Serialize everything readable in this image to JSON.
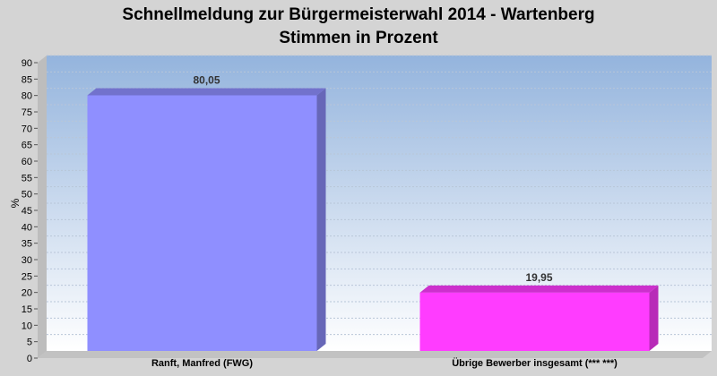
{
  "chart_data": {
    "type": "bar",
    "title": "Schnellmeldung zur Bürgermeisterwahl 2014 - Wartenberg",
    "subtitle": "Stimmen in Prozent",
    "ylabel": "%",
    "xlabel": "",
    "ylim": [
      0,
      90
    ],
    "ytick_step": 5,
    "grid": true,
    "categories": [
      "Ranft, Manfred (FWG)",
      "Übrige Bewerber insgesamt (***  ***)"
    ],
    "values": [
      80.05,
      19.95
    ],
    "value_labels": [
      "80,05",
      "19,95"
    ],
    "bar_colors": [
      "#8f8fff",
      "#ff3cff"
    ],
    "background_gradient": [
      "#94b4dd",
      "#ffffff"
    ]
  }
}
